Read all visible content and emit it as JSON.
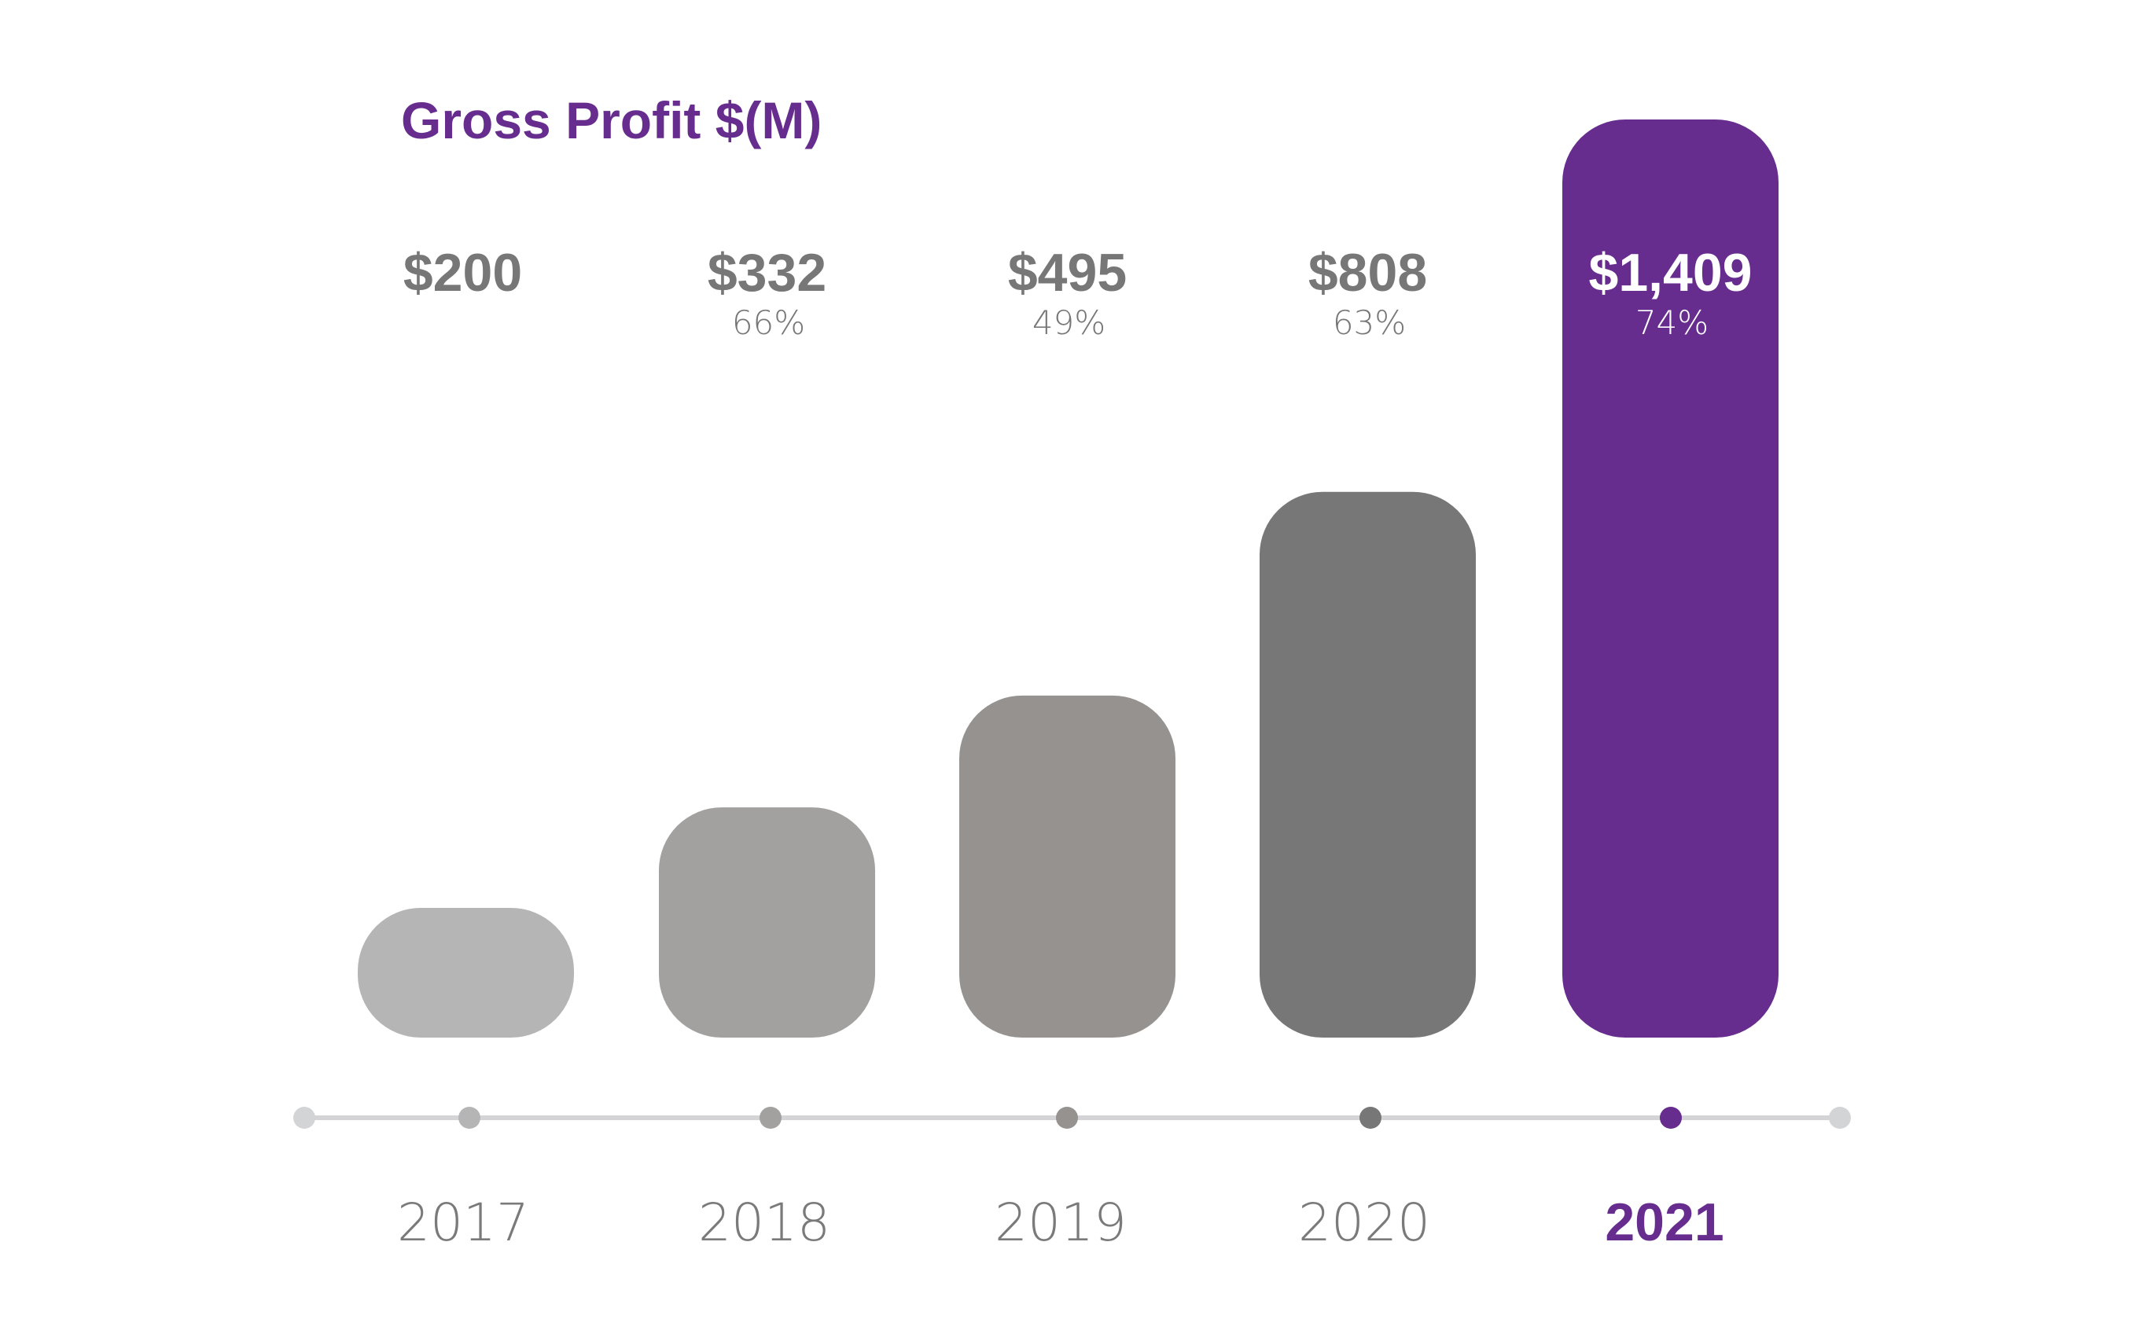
{
  "chart_data": {
    "type": "bar",
    "title": "Gross Profit $(M)",
    "xlabel": "",
    "ylabel": "",
    "categories": [
      "2017",
      "2018",
      "2019",
      "2020",
      "2021"
    ],
    "values": [
      200,
      332,
      495,
      808,
      1409
    ],
    "value_labels": [
      "$200",
      "$332",
      "$495",
      "$808",
      "$1,409"
    ],
    "growth_labels": [
      "",
      "66%",
      "49%",
      "63%",
      "74%"
    ],
    "highlight_index": 4,
    "grid": false,
    "legend": "none",
    "colors": {
      "title": "#672d8e",
      "highlight": "#672d8e",
      "bars": [
        "#b5b5b5",
        "#a2a19f",
        "#959290",
        "#777777",
        "#672d8e"
      ],
      "dots": [
        "#b5b5b5",
        "#a2a19f",
        "#959290",
        "#777777",
        "#672d8e"
      ],
      "axis_line": "#d4d4d6",
      "axis_end_dots": "#d3d4d6",
      "label_text": "#777777",
      "highlight_label_text": "#ffffff",
      "year_text": "#7a7a7a"
    }
  }
}
